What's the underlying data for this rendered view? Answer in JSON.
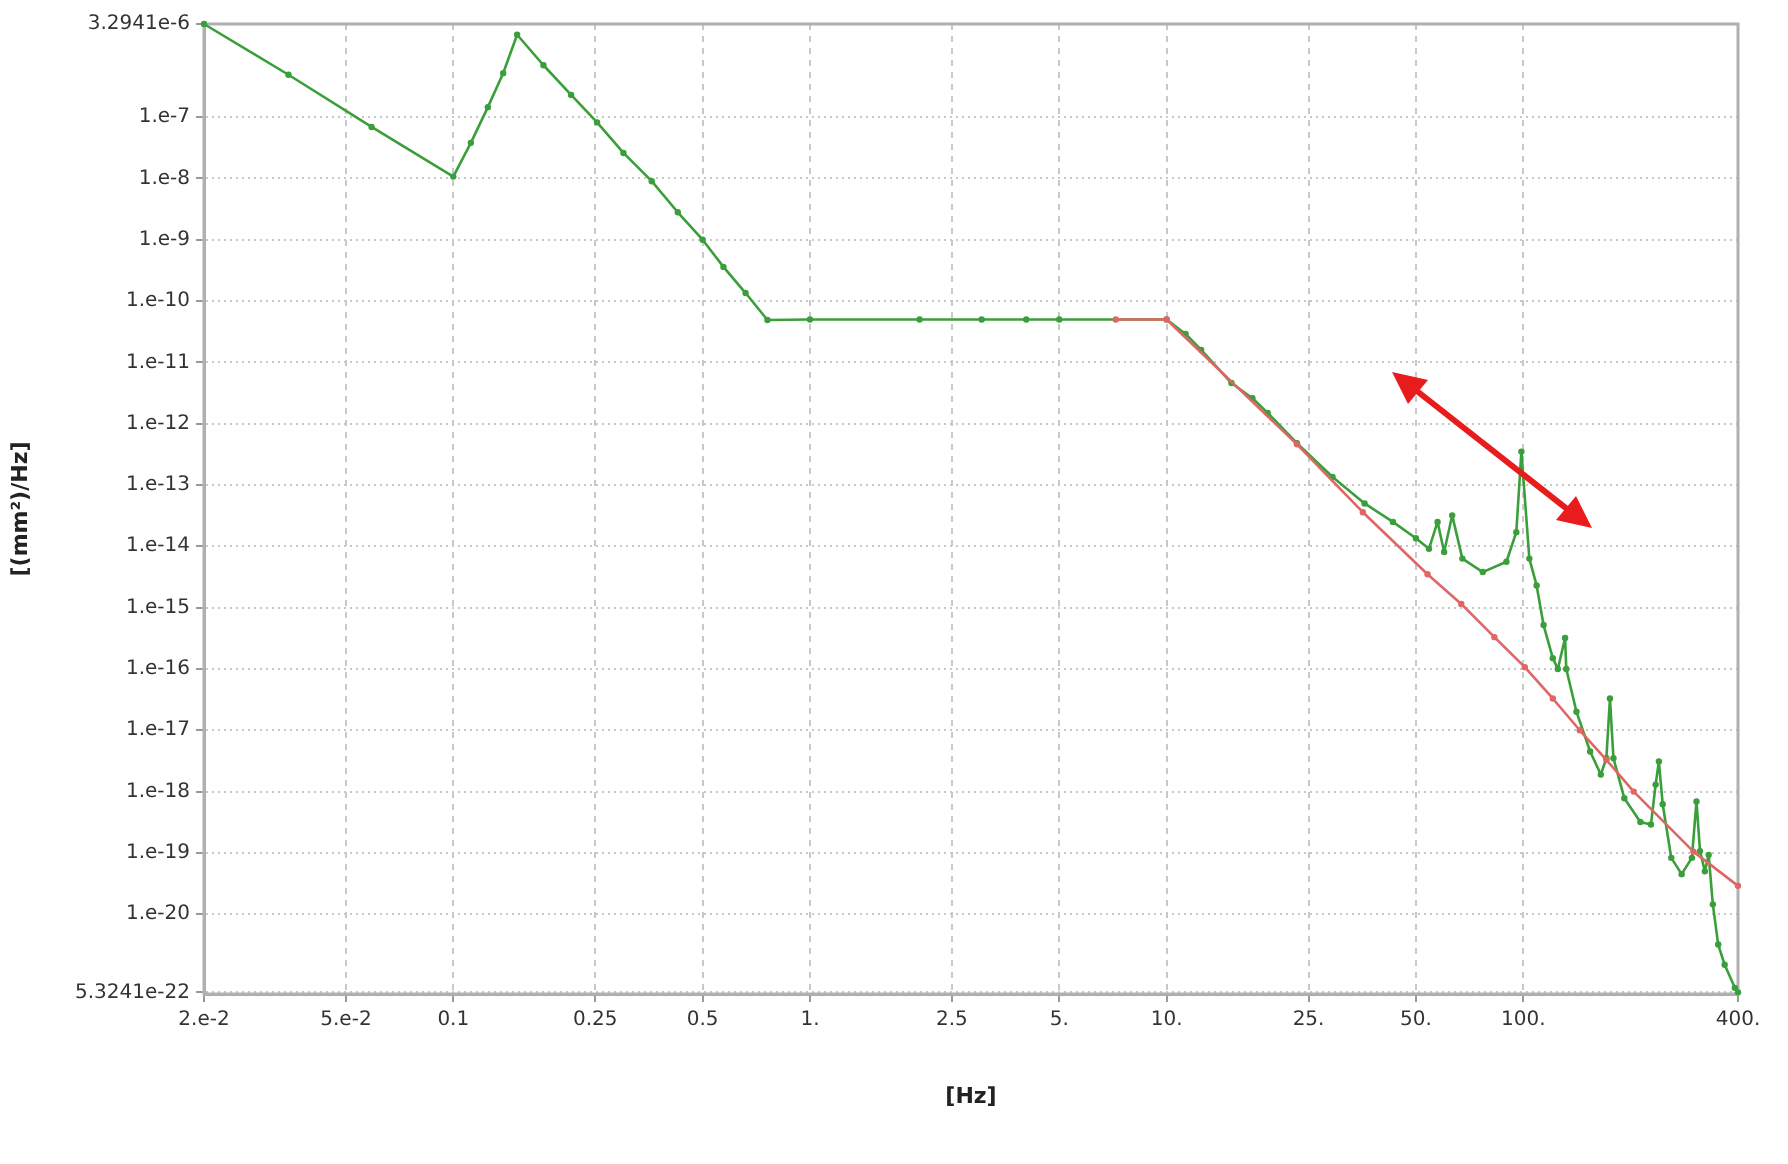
{
  "chart_data": {
    "type": "line",
    "xlabel": "[Hz]",
    "ylabel": "[(mm²)/Hz]",
    "log": "xy",
    "grid": true,
    "legend": false,
    "marker": "circle",
    "line_style": "solid",
    "xlim": [
      0.02,
      400
    ],
    "xticks": [
      {
        "value": 0.02,
        "label": "2.e-2"
      },
      {
        "value": 0.05,
        "label": "5.e-2"
      },
      0.1,
      0.25,
      0.5,
      {
        "value": 1,
        "label": "1."
      },
      2.5,
      {
        "value": 5,
        "label": "5."
      },
      {
        "value": 10,
        "label": "10."
      },
      {
        "value": 25,
        "label": "25."
      },
      {
        "value": 50,
        "label": "50."
      },
      {
        "value": 100,
        "label": "100."
      },
      {
        "value": 400,
        "label": "400."
      }
    ],
    "ylim": [
      5.3241e-22,
      3.2941e-06
    ],
    "yticks": [
      {
        "value": 5.3241e-22,
        "label": "5.3241e-22"
      },
      {
        "value": 1e-20,
        "label": "1.e-20"
      },
      {
        "value": 1e-19,
        "label": "1.e-19"
      },
      {
        "value": 1e-18,
        "label": "1.e-18"
      },
      {
        "value": 1e-17,
        "label": "1.e-17"
      },
      {
        "value": 1e-16,
        "label": "1.e-16"
      },
      {
        "value": 1e-15,
        "label": "1.e-15"
      },
      {
        "value": 1e-14,
        "label": "1.e-14"
      },
      {
        "value": 1e-13,
        "label": "1.e-13"
      },
      {
        "value": 1e-12,
        "label": "1.e-12"
      },
      {
        "value": 1e-11,
        "label": "1.e-11"
      },
      {
        "value": 1e-10,
        "label": "1.e-10"
      },
      {
        "value": 1e-09,
        "label": "1.e-9"
      },
      {
        "value": 1e-08,
        "label": "1.e-8"
      },
      {
        "value": 1e-07,
        "label": "1.e-7"
      },
      {
        "value": 3.2941e-06,
        "label": "3.2941e-6"
      }
    ],
    "series": [
      {
        "color": "#e06666",
        "x": [
          7.2,
          10,
          23.2,
          35.5,
          53.9,
          67,
          83,
          101,
          121,
          144,
          171,
          204,
          300,
          400
        ],
        "values": [
          5e-11,
          5e-11,
          4.6e-13,
          3.6e-14,
          3.5e-15,
          1.15e-15,
          3.3e-16,
          1.07e-16,
          3.3e-17,
          1e-17,
          3.3e-18,
          1e-18,
          1.05e-19,
          2.9e-20
        ]
      },
      {
        "color": "#3a9f3a",
        "x": [
          0.02,
          0.0345,
          0.059,
          0.1,
          0.112,
          0.125,
          0.138,
          0.151,
          0.179,
          0.214,
          0.253,
          0.3,
          0.36,
          0.426,
          0.5,
          0.572,
          0.66,
          0.76,
          1,
          2.03,
          3.03,
          4.04,
          5,
          10,
          11.3,
          12.5,
          15.2,
          17.4,
          19.2,
          23.2,
          29.2,
          35.9,
          43.1,
          50,
          54.4,
          57.5,
          60,
          63.2,
          67.5,
          77,
          89.7,
          95.6,
          98.8,
          104,
          109,
          114,
          121,
          125,
          131,
          132,
          141,
          154,
          165,
          171,
          175,
          179,
          192,
          213,
          228,
          235,
          240,
          246,
          260,
          278,
          297,
          306,
          313,
          323,
          331,
          340,
          352,
          367,
          392,
          400
        ],
        "values": [
          3.2941e-06,
          4.9e-07,
          6.9e-08,
          1.07e-08,
          3.8e-08,
          1.45e-07,
          5.2e-07,
          2.2e-06,
          7e-07,
          2.3e-07,
          8.2e-08,
          2.6e-08,
          9e-09,
          2.8e-09,
          1e-09,
          3.6e-10,
          1.35e-10,
          4.9e-11,
          5e-11,
          5e-11,
          5e-11,
          5e-11,
          5e-11,
          5e-11,
          2.9e-11,
          1.6e-11,
          4.6e-12,
          2.6e-12,
          1.5e-12,
          4.8e-13,
          1.35e-13,
          5e-14,
          2.5e-14,
          1.35e-14,
          9.1e-15,
          2.5e-14,
          8.1e-15,
          3.2e-14,
          6.3e-15,
          3.8e-15,
          5.6e-15,
          1.7e-14,
          3.5e-13,
          6.3e-15,
          2.3e-15,
          5.2e-16,
          1.5e-16,
          1e-16,
          3.2e-16,
          1e-16,
          2e-17,
          4.5e-18,
          1.9e-18,
          3.5e-18,
          3.3e-17,
          3.5e-18,
          7.8e-19,
          3.2e-19,
          2.9e-19,
          1.3e-18,
          3.1e-18,
          6.2e-19,
          8.3e-20,
          4.5e-20,
          8.3e-20,
          6.9e-19,
          1.07e-19,
          5e-20,
          9.3e-20,
          1.45e-20,
          3.2e-21,
          1.5e-21,
          6.3e-22,
          5.3241e-22
        ]
      }
    ]
  }
}
